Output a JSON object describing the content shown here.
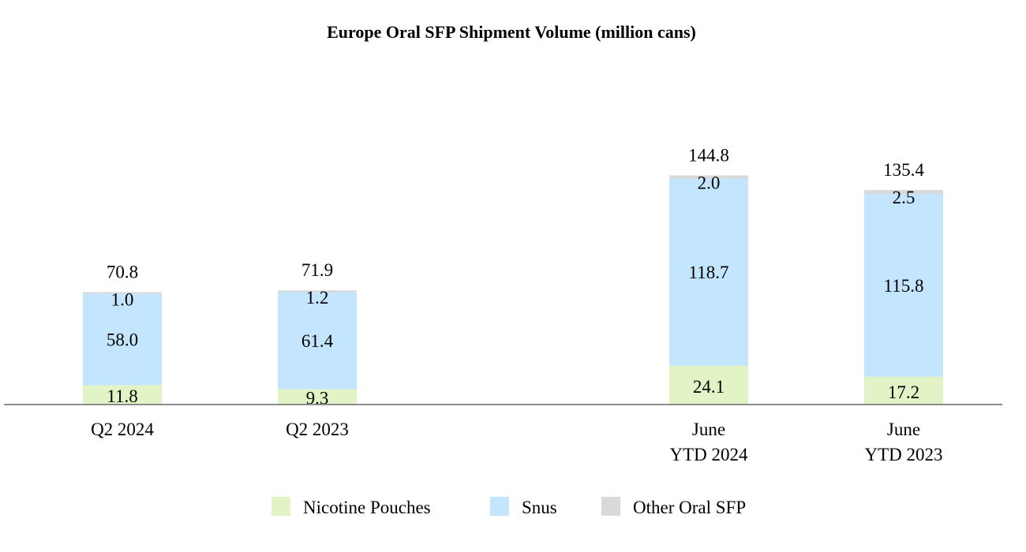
{
  "chart_data": {
    "type": "bar",
    "stacked": true,
    "title": "Europe Oral SFP Shipment Volume (million cans)",
    "categories": [
      [
        "Q2 2024"
      ],
      [
        "Q2 2023"
      ],
      [
        "June",
        "YTD 2024"
      ],
      [
        "June",
        "YTD 2023"
      ]
    ],
    "series": [
      {
        "name": "Nicotine Pouches",
        "color": "#e2f4c5",
        "values": [
          11.8,
          9.3,
          24.1,
          17.2
        ],
        "labels": [
          "11.8",
          "9.3",
          "24.1",
          "17.2"
        ]
      },
      {
        "name": "Snus",
        "color": "#c3e5fd",
        "values": [
          58.0,
          61.4,
          118.7,
          115.8
        ],
        "labels": [
          "58.0",
          "61.4",
          "118.7",
          "115.8"
        ]
      },
      {
        "name": "Other Oral SFP",
        "color": "#d9d9d9",
        "values": [
          1.0,
          1.2,
          2.0,
          2.5
        ],
        "labels": [
          "1.0",
          "1.2",
          "2.0",
          "2.5"
        ]
      }
    ],
    "totals": [
      "70.8",
      "71.9",
      "144.8",
      "135.4"
    ],
    "legend_position": "bottom",
    "ylim": [
      0,
      145
    ],
    "xlabel": "",
    "ylabel": ""
  }
}
